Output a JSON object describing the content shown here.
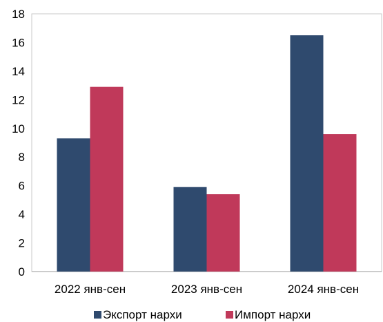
{
  "chart_data": {
    "type": "bar",
    "categories": [
      "2022 янв-сен",
      "2023 янв-сен",
      "2024 янв-сен"
    ],
    "series": [
      {
        "name": "Экспорт нархи",
        "values": [
          9.3,
          5.9,
          16.5
        ],
        "color": "#2f4a6e"
      },
      {
        "name": "Импорт нархи",
        "values": [
          12.9,
          5.4,
          9.6
        ],
        "color": "#c0395a"
      }
    ],
    "yticks": [
      "0",
      "2",
      "4",
      "6",
      "8",
      "10",
      "12",
      "14",
      "16",
      "18"
    ],
    "ylim": [
      0,
      18
    ],
    "grid": false,
    "legend_position": "bottom"
  }
}
